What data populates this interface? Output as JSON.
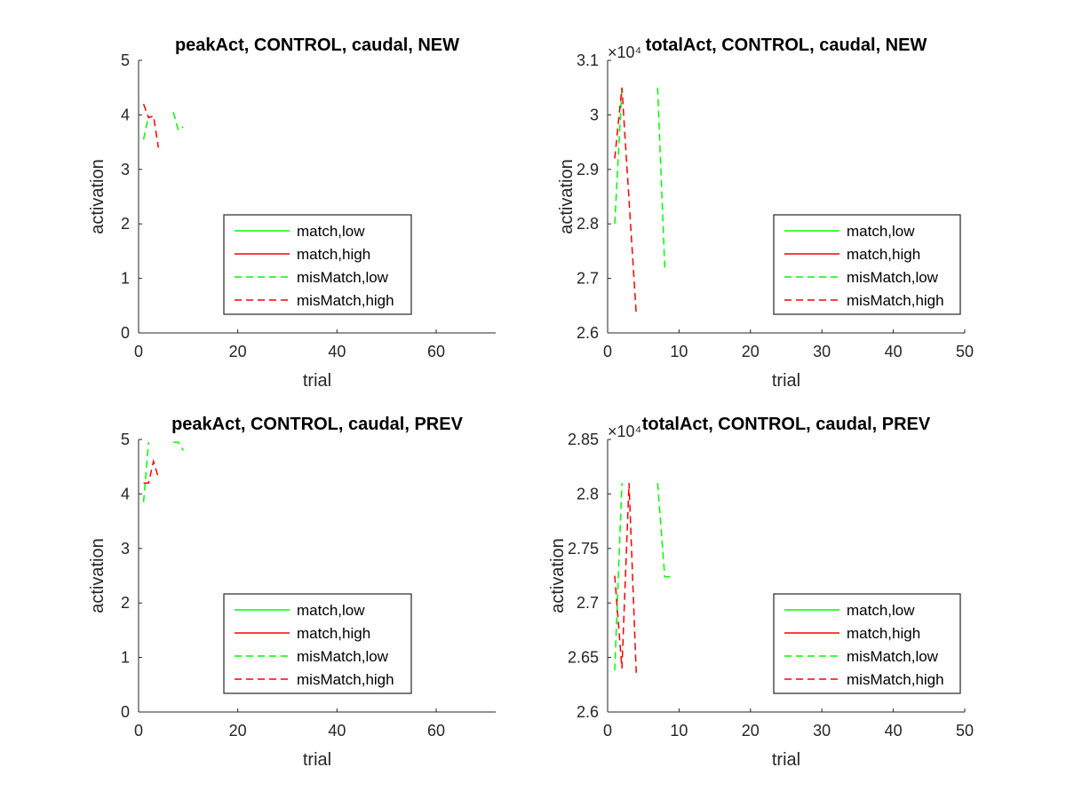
{
  "figure": {
    "background": "#ffffff",
    "axis_color": "#262626",
    "colors": {
      "match,low": "#00ff00",
      "match,high": "#ff0000",
      "misMatch,low": "#00ff00",
      "misMatch,high": "#ff0000"
    }
  },
  "chart_data": [
    {
      "type": "line",
      "title": "peakAct, CONTROL, caudal, NEW",
      "xlabel": "trial",
      "ylabel": "activation",
      "xlim": [
        0,
        72
      ],
      "ylim": [
        0,
        5
      ],
      "xticks": [
        0,
        20,
        40,
        60
      ],
      "yticks": [
        0,
        1,
        2,
        3,
        4,
        5
      ],
      "ytick_labels": [
        "0",
        "1",
        "2",
        "3",
        "4",
        "5"
      ],
      "exponent_label": "",
      "legend_position": "lower-center",
      "legend": [
        "match,low",
        "match,high",
        "misMatch,low",
        "misMatch,high"
      ],
      "series": [
        {
          "name": "match,low",
          "style": "solid",
          "color": "#00ff00",
          "segments": []
        },
        {
          "name": "match,high",
          "style": "solid",
          "color": "#ff0000",
          "segments": []
        },
        {
          "name": "misMatch,low",
          "style": "dashed",
          "color": "#00ff00",
          "segments": [
            [
              [
                1,
                3.55
              ],
              [
                2,
                3.98
              ]
            ],
            [
              [
                7,
                4.05
              ],
              [
                8,
                3.72
              ],
              [
                9,
                3.78
              ]
            ]
          ]
        },
        {
          "name": "misMatch,high",
          "style": "dashed",
          "color": "#ff0000",
          "segments": [
            [
              [
                1,
                4.2
              ],
              [
                2,
                3.95
              ],
              [
                3,
                3.98
              ],
              [
                4,
                3.4
              ]
            ]
          ]
        }
      ]
    },
    {
      "type": "line",
      "title": "totalAct, CONTROL, caudal, NEW",
      "xlabel": "trial",
      "ylabel": "activation",
      "xlim": [
        0,
        50
      ],
      "ylim": [
        2.6,
        3.1
      ],
      "xticks": [
        0,
        10,
        20,
        30,
        40,
        50
      ],
      "yticks": [
        2.6,
        2.7,
        2.8,
        2.9,
        3.0,
        3.1
      ],
      "ytick_labels": [
        "2.6",
        "2.7",
        "2.8",
        "2.9",
        "3",
        "3.1"
      ],
      "exponent_label": "×10⁴",
      "legend_position": "lower-right",
      "legend": [
        "match,low",
        "match,high",
        "misMatch,low",
        "misMatch,high"
      ],
      "series": [
        {
          "name": "match,low",
          "style": "solid",
          "color": "#00ff00",
          "segments": []
        },
        {
          "name": "match,high",
          "style": "solid",
          "color": "#ff0000",
          "segments": []
        },
        {
          "name": "misMatch,low",
          "style": "dashed",
          "color": "#00ff00",
          "segments": [
            [
              [
                1,
                2.8
              ],
              [
                2,
                3.05
              ]
            ],
            [
              [
                7,
                3.05
              ],
              [
                8,
                2.72
              ]
            ]
          ]
        },
        {
          "name": "misMatch,high",
          "style": "dashed",
          "color": "#ff0000",
          "segments": [
            [
              [
                1,
                2.92
              ],
              [
                2,
                3.05
              ],
              [
                4,
                2.635
              ]
            ]
          ]
        }
      ]
    },
    {
      "type": "line",
      "title": "peakAct, CONTROL, caudal, PREV",
      "xlabel": "trial",
      "ylabel": "activation",
      "xlim": [
        0,
        72
      ],
      "ylim": [
        0,
        5
      ],
      "xticks": [
        0,
        20,
        40,
        60
      ],
      "yticks": [
        0,
        1,
        2,
        3,
        4,
        5
      ],
      "ytick_labels": [
        "0",
        "1",
        "2",
        "3",
        "4",
        "5"
      ],
      "exponent_label": "",
      "legend_position": "lower-center",
      "legend": [
        "match,low",
        "match,high",
        "misMatch,low",
        "misMatch,high"
      ],
      "series": [
        {
          "name": "match,low",
          "style": "solid",
          "color": "#00ff00",
          "segments": []
        },
        {
          "name": "match,high",
          "style": "solid",
          "color": "#ff0000",
          "segments": []
        },
        {
          "name": "misMatch,low",
          "style": "dashed",
          "color": "#00ff00",
          "segments": [
            [
              [
                1,
                3.85
              ],
              [
                2,
                4.95
              ]
            ],
            [
              [
                7,
                4.95
              ],
              [
                8,
                4.95
              ],
              [
                9,
                4.8
              ]
            ]
          ]
        },
        {
          "name": "misMatch,high",
          "style": "dashed",
          "color": "#ff0000",
          "segments": [
            [
              [
                1,
                4.2
              ],
              [
                2,
                4.2
              ],
              [
                3,
                4.6
              ],
              [
                4,
                4.3
              ]
            ]
          ]
        }
      ]
    },
    {
      "type": "line",
      "title": "totalAct, CONTROL, caudal, PREV",
      "xlabel": "trial",
      "ylabel": "activation",
      "xlim": [
        0,
        50
      ],
      "ylim": [
        2.6,
        2.85
      ],
      "xticks": [
        0,
        10,
        20,
        30,
        40,
        50
      ],
      "yticks": [
        2.6,
        2.65,
        2.7,
        2.75,
        2.8,
        2.85
      ],
      "ytick_labels": [
        "2.6",
        "2.65",
        "2.7",
        "2.75",
        "2.8",
        "2.85"
      ],
      "exponent_label": "×10⁴",
      "legend_position": "lower-right",
      "legend": [
        "match,low",
        "match,high",
        "misMatch,low",
        "misMatch,high"
      ],
      "series": [
        {
          "name": "match,low",
          "style": "solid",
          "color": "#00ff00",
          "segments": []
        },
        {
          "name": "match,high",
          "style": "solid",
          "color": "#ff0000",
          "segments": []
        },
        {
          "name": "misMatch,low",
          "style": "dashed",
          "color": "#00ff00",
          "segments": [
            [
              [
                1,
                2.638
              ],
              [
                2,
                2.81
              ]
            ],
            [
              [
                7,
                2.81
              ],
              [
                8,
                2.724
              ],
              [
                9,
                2.724
              ]
            ]
          ]
        },
        {
          "name": "misMatch,high",
          "style": "dashed",
          "color": "#ff0000",
          "segments": [
            [
              [
                1,
                2.725
              ],
              [
                2,
                2.64
              ],
              [
                3,
                2.81
              ],
              [
                4,
                2.636
              ]
            ]
          ]
        }
      ]
    }
  ]
}
